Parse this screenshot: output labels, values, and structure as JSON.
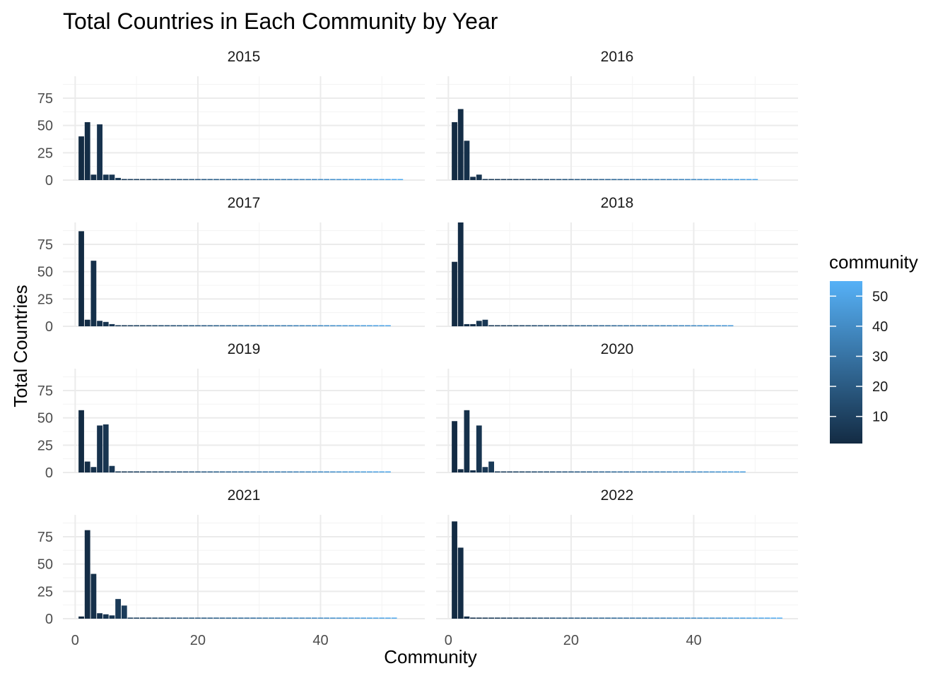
{
  "chart_data": {
    "type": "bar",
    "title": "Total Countries in Each Community by Year",
    "xlabel": "Community",
    "ylabel": "Total Countries",
    "xlim": [
      -2,
      57
    ],
    "ylim": [
      0,
      95
    ],
    "x_ticks": [
      "0",
      "20",
      "40"
    ],
    "y_ticks": [
      "0",
      "25",
      "50",
      "75"
    ],
    "legend": {
      "title": "community",
      "position": "right",
      "ticks": [
        "10",
        "20",
        "30",
        "40",
        "50"
      ],
      "range": [
        1,
        55
      ],
      "low_color": "#132B43",
      "high_color": "#56B1F7"
    },
    "grid": true,
    "panels": [
      {
        "label": "2015",
        "max_community": 53,
        "values": [
          40,
          53,
          5,
          51,
          5,
          5,
          2,
          1
        ]
      },
      {
        "label": "2016",
        "max_community": 50,
        "values": [
          53,
          65,
          36,
          3,
          5
        ]
      },
      {
        "label": "2017",
        "max_community": 51,
        "values": [
          87,
          6,
          60,
          5,
          4,
          2
        ]
      },
      {
        "label": "2018",
        "max_community": 46,
        "values": [
          59,
          95,
          2,
          2,
          5,
          6
        ]
      },
      {
        "label": "2019",
        "max_community": 51,
        "values": [
          57,
          10,
          5,
          43,
          44,
          6
        ]
      },
      {
        "label": "2020",
        "max_community": 48,
        "values": [
          47,
          3,
          57,
          2,
          43,
          5,
          10
        ]
      },
      {
        "label": "2021",
        "max_community": 52,
        "values": [
          2,
          81,
          41,
          5,
          4,
          3,
          18,
          12
        ]
      },
      {
        "label": "2022",
        "max_community": 54,
        "values": [
          89,
          65,
          2
        ]
      }
    ]
  }
}
